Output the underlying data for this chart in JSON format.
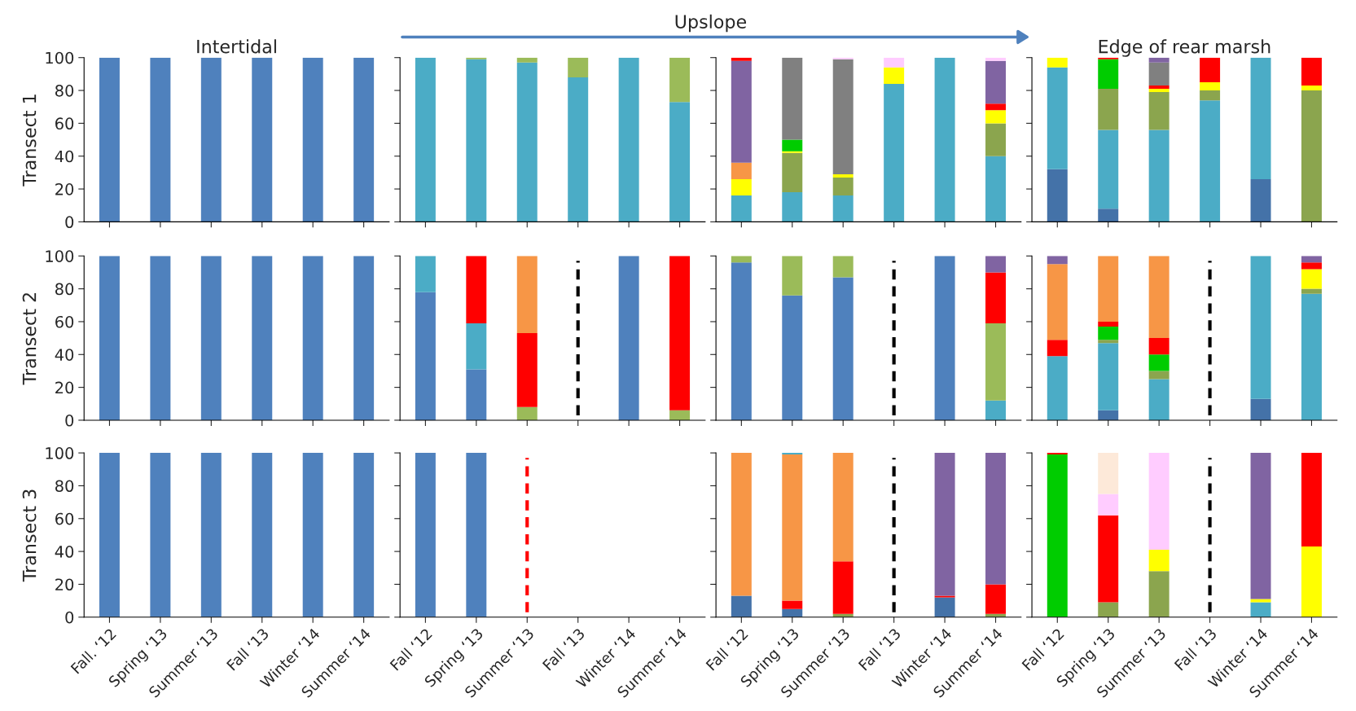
{
  "chart_data": [
    {
      "type": "bar",
      "stacked": true,
      "title": "Intertidal",
      "ylabel": "Transect 1",
      "tick_labels": "y",
      "ylim": [
        0,
        100
      ],
      "yticks": [
        0,
        20,
        40,
        60,
        80,
        100
      ],
      "categories": [
        "Fall. ‘12",
        "Spring ‘13",
        "Summer ‘13",
        "Fall ‘13",
        "Winter ‘14",
        "Summer ‘14"
      ],
      "series": [
        {
          "color": "#4f81bd",
          "values": [
            100,
            100,
            100,
            100,
            100,
            100
          ]
        }
      ]
    },
    {
      "type": "bar",
      "stacked": true,
      "annotations": [
        "Upslope"
      ],
      "tick_labels": false,
      "ylim": [
        0,
        100
      ],
      "yticks": [
        0,
        20,
        40,
        60,
        80,
        100
      ],
      "categories": [
        "Fall ‘12",
        "Spring ‘13",
        "Summer ‘13",
        "Fall ‘13",
        "Winter ‘14",
        "Summer ‘14"
      ],
      "series": [
        {
          "color": "#4bacc6",
          "values": [
            100,
            99,
            97,
            88,
            100,
            73
          ]
        },
        {
          "color": "#9bbb59",
          "values": [
            0,
            1,
            3,
            12,
            0,
            27
          ]
        }
      ]
    },
    {
      "type": "bar",
      "stacked": true,
      "tick_labels": false,
      "ylim": [
        0,
        100
      ],
      "yticks": [
        0,
        20,
        40,
        60,
        80,
        100
      ],
      "categories": [
        "Fall ‘12",
        "Spring ‘13",
        "Summer ‘13",
        "Fall ‘13",
        "Winter ‘14",
        "Summer ‘14"
      ],
      "series": [
        {
          "color": "#4bacc6",
          "values": [
            16,
            18,
            16,
            84,
            100,
            40
          ]
        },
        {
          "color": "#8ba54e",
          "values": [
            0,
            24,
            11,
            0,
            0,
            20
          ]
        },
        {
          "color": "#ffff00",
          "values": [
            10,
            1,
            2,
            10,
            0,
            8
          ]
        },
        {
          "color": "#00cc00",
          "values": [
            0,
            7,
            0,
            0,
            0,
            0
          ]
        },
        {
          "color": "#f79646",
          "values": [
            10,
            0,
            0,
            0,
            0,
            0
          ]
        },
        {
          "color": "#ff0000",
          "values": [
            0,
            0,
            0,
            0,
            0,
            4
          ]
        },
        {
          "color": "#808080",
          "values": [
            0,
            50,
            70,
            0,
            0,
            0
          ]
        },
        {
          "color": "#8064a2",
          "values": [
            62,
            0,
            0,
            0,
            0,
            26
          ]
        },
        {
          "color": "#ff0000",
          "values": [
            2,
            0,
            0,
            0,
            0,
            0
          ]
        },
        {
          "color": "#ffccff",
          "values": [
            0,
            0,
            1,
            6,
            0,
            2
          ]
        }
      ]
    },
    {
      "type": "bar",
      "stacked": true,
      "title": "Edge of rear marsh",
      "tick_labels": false,
      "ylim": [
        0,
        100
      ],
      "yticks": [
        0,
        20,
        40,
        60,
        80,
        100
      ],
      "categories": [
        "Fall ‘12",
        "Spring ‘13",
        "Summer ‘13",
        "Fall ‘13",
        "Winter ‘14",
        "Summer ‘14"
      ],
      "series": [
        {
          "color": "#4472a8",
          "values": [
            32,
            8,
            0,
            0,
            26,
            0
          ]
        },
        {
          "color": "#4bacc6",
          "values": [
            62,
            48,
            56,
            74,
            74,
            0
          ]
        },
        {
          "color": "#8ba54e",
          "values": [
            0,
            25,
            23,
            6,
            0,
            80
          ]
        },
        {
          "color": "#ffff00",
          "values": [
            6,
            0,
            2,
            5,
            0,
            3
          ]
        },
        {
          "color": "#00cc00",
          "values": [
            0,
            18,
            0,
            0,
            0,
            0
          ]
        },
        {
          "color": "#ff0000",
          "values": [
            0,
            1,
            2,
            15,
            0,
            17
          ]
        },
        {
          "color": "#808080",
          "values": [
            0,
            0,
            14,
            0,
            0,
            0
          ]
        },
        {
          "color": "#8064a2",
          "values": [
            0,
            0,
            3,
            0,
            0,
            0
          ]
        }
      ]
    },
    {
      "type": "bar",
      "stacked": true,
      "ylabel": "Transect 2",
      "tick_labels": "y",
      "ylim": [
        0,
        100
      ],
      "yticks": [
        0,
        20,
        40,
        60,
        80,
        100
      ],
      "categories": [
        "Fall. ‘12",
        "Spring ‘13",
        "Summer ‘13",
        "Fall ‘13",
        "Winter ‘14",
        "Summer ‘14"
      ],
      "series": [
        {
          "color": "#4f81bd",
          "values": [
            100,
            100,
            100,
            100,
            100,
            100
          ]
        }
      ]
    },
    {
      "type": "bar",
      "stacked": true,
      "tick_labels": false,
      "ylim": [
        0,
        100
      ],
      "yticks": [
        0,
        20,
        40,
        60,
        80,
        100
      ],
      "categories": [
        "Fall ‘12",
        "Spring ‘13",
        "Summer ‘13",
        "Fall ‘13",
        "Winter ‘14",
        "Summer ‘14"
      ],
      "ref_lines": [
        {
          "axis": "x",
          "value": "Fall ‘13",
          "color": "#000000",
          "line_style": "dashed"
        }
      ],
      "series": [
        {
          "color": "#4f81bd",
          "values": [
            78,
            31,
            0,
            null,
            100,
            0
          ]
        },
        {
          "color": "#9bbb59",
          "values": [
            0,
            0,
            8,
            null,
            0,
            6
          ]
        },
        {
          "color": "#4bacc6",
          "values": [
            22,
            28,
            0,
            null,
            0,
            0
          ]
        },
        {
          "color": "#ff0000",
          "values": [
            0,
            41,
            45,
            null,
            0,
            94
          ]
        },
        {
          "color": "#f79646",
          "values": [
            0,
            0,
            47,
            null,
            0,
            0
          ]
        }
      ]
    },
    {
      "type": "bar",
      "stacked": true,
      "tick_labels": false,
      "ylim": [
        0,
        100
      ],
      "yticks": [
        0,
        20,
        40,
        60,
        80,
        100
      ],
      "categories": [
        "Fall ‘12",
        "Spring ‘13",
        "Summer ‘13",
        "Fall ‘13",
        "Winter ‘14",
        "Summer ‘14"
      ],
      "ref_lines": [
        {
          "axis": "x",
          "value": "Fall ‘13",
          "color": "#000000",
          "line_style": "dashed"
        }
      ],
      "series": [
        {
          "color": "#4f81bd",
          "values": [
            96,
            76,
            87,
            null,
            100,
            0
          ]
        },
        {
          "color": "#4bacc6",
          "values": [
            0,
            0,
            0,
            null,
            0,
            12
          ]
        },
        {
          "color": "#9bbb59",
          "values": [
            4,
            24,
            13,
            null,
            0,
            47
          ]
        },
        {
          "color": "#ff0000",
          "values": [
            0,
            0,
            0,
            null,
            0,
            31
          ]
        },
        {
          "color": "#8064a2",
          "values": [
            0,
            0,
            0,
            null,
            0,
            10
          ]
        }
      ]
    },
    {
      "type": "bar",
      "stacked": true,
      "tick_labels": false,
      "ylim": [
        0,
        100
      ],
      "yticks": [
        0,
        20,
        40,
        60,
        80,
        100
      ],
      "categories": [
        "Fall ‘12",
        "Spring ‘13",
        "Summer ‘13",
        "Fall ‘13",
        "Winter ‘14",
        "Summer ‘14"
      ],
      "ref_lines": [
        {
          "axis": "x",
          "value": "Fall ‘13",
          "color": "#000000",
          "line_style": "dashed"
        }
      ],
      "series": [
        {
          "color": "#4472a8",
          "values": [
            0,
            6,
            0,
            null,
            13,
            0
          ]
        },
        {
          "color": "#4bacc6",
          "values": [
            39,
            41,
            25,
            null,
            87,
            77
          ]
        },
        {
          "color": "#8ba54e",
          "values": [
            0,
            2,
            5,
            null,
            0,
            3
          ]
        },
        {
          "color": "#ffff00",
          "values": [
            0,
            0,
            0,
            null,
            0,
            12
          ]
        },
        {
          "color": "#00cc00",
          "values": [
            0,
            8,
            10,
            null,
            0,
            0
          ]
        },
        {
          "color": "#ff0000",
          "values": [
            10,
            3,
            10,
            null,
            0,
            4
          ]
        },
        {
          "color": "#f79646",
          "values": [
            46,
            40,
            50,
            null,
            0,
            0
          ]
        },
        {
          "color": "#8064a2",
          "values": [
            5,
            0,
            0,
            null,
            0,
            4
          ]
        }
      ]
    },
    {
      "type": "bar",
      "stacked": true,
      "ylabel": "Transect 3",
      "ylim": [
        0,
        100
      ],
      "yticks": [
        0,
        20,
        40,
        60,
        80,
        100
      ],
      "categories": [
        "Fall. ‘12",
        "Spring ‘13",
        "Summer ‘13",
        "Fall ‘13",
        "Winter ‘14",
        "Summer ‘14"
      ],
      "series": [
        {
          "color": "#4f81bd",
          "values": [
            100,
            100,
            100,
            100,
            100,
            100
          ]
        }
      ]
    },
    {
      "type": "bar",
      "stacked": true,
      "tick_labels": "x",
      "ylim": [
        0,
        100
      ],
      "yticks": [
        0,
        20,
        40,
        60,
        80,
        100
      ],
      "categories": [
        "Fall ‘12",
        "Spring ‘13",
        "Summer ‘13",
        "Fall ‘13",
        "Winter ‘14",
        "Summer ‘14"
      ],
      "ref_lines": [
        {
          "axis": "x",
          "value": "Summer ‘13",
          "color": "#ff0000",
          "line_style": "dashed"
        }
      ],
      "series": [
        {
          "color": "#4f81bd",
          "values": [
            100,
            100,
            null,
            null,
            null,
            null
          ]
        }
      ]
    },
    {
      "type": "bar",
      "stacked": true,
      "tick_labels": "x",
      "ylim": [
        0,
        100
      ],
      "yticks": [
        0,
        20,
        40,
        60,
        80,
        100
      ],
      "categories": [
        "Fall ‘12",
        "Spring ‘13",
        "Summer ‘13",
        "Fall ‘13",
        "Winter ‘14",
        "Summer ‘14"
      ],
      "ref_lines": [
        {
          "axis": "x",
          "value": "Fall ‘13",
          "color": "#000000",
          "line_style": "dashed"
        }
      ],
      "series": [
        {
          "color": "#4472a8",
          "values": [
            13,
            5,
            0,
            null,
            12,
            0
          ]
        },
        {
          "color": "#8ba54e",
          "values": [
            0,
            0,
            2,
            null,
            0,
            2
          ]
        },
        {
          "color": "#ff0000",
          "values": [
            0,
            5,
            32,
            null,
            1,
            18
          ]
        },
        {
          "color": "#f79646",
          "values": [
            87,
            89,
            66,
            null,
            0,
            0
          ]
        },
        {
          "color": "#4bacc6",
          "values": [
            0,
            1,
            0,
            null,
            0,
            0
          ]
        },
        {
          "color": "#8064a2",
          "values": [
            0,
            0,
            0,
            null,
            87,
            80
          ]
        }
      ]
    },
    {
      "type": "bar",
      "stacked": true,
      "tick_labels": "x",
      "ylim": [
        0,
        100
      ],
      "yticks": [
        0,
        20,
        40,
        60,
        80,
        100
      ],
      "categories": [
        "Fall ‘12",
        "Spring ‘13",
        "Summer ‘13",
        "Fall ‘13",
        "Winter ‘14",
        "Summer ‘14"
      ],
      "ref_lines": [
        {
          "axis": "x",
          "value": "Fall ‘13",
          "color": "#000000",
          "line_style": "dashed"
        }
      ],
      "series": [
        {
          "color": "#8ba54e",
          "values": [
            0,
            9,
            28,
            null,
            0,
            0
          ]
        },
        {
          "color": "#4bacc6",
          "values": [
            0,
            0,
            0,
            null,
            9,
            0
          ]
        },
        {
          "color": "#ffff00",
          "values": [
            0,
            0,
            13,
            null,
            2,
            43
          ]
        },
        {
          "color": "#00cc00",
          "values": [
            99,
            0,
            0,
            null,
            0,
            0
          ]
        },
        {
          "color": "#ff0000",
          "values": [
            1,
            53,
            0,
            null,
            0,
            57
          ]
        },
        {
          "color": "#ffccff",
          "values": [
            0,
            13,
            59,
            null,
            0,
            0
          ]
        },
        {
          "color": "#fde9d9",
          "values": [
            0,
            25,
            0,
            null,
            0,
            0
          ]
        },
        {
          "color": "#8064a2",
          "values": [
            0,
            0,
            0,
            null,
            89,
            0
          ]
        }
      ]
    }
  ]
}
